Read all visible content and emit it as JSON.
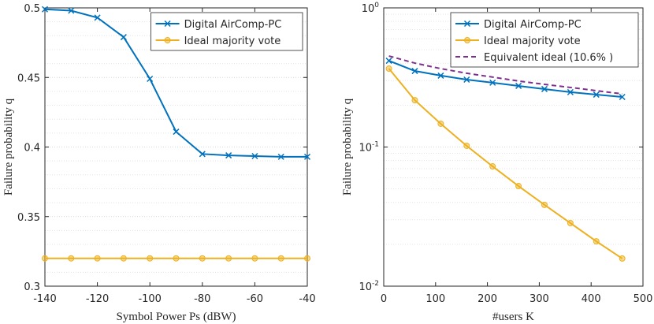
{
  "chart_data": [
    {
      "type": "line",
      "xlabel": "Symbol Power Ps (dBW)",
      "ylabel": "Failure probability q",
      "x": [
        -140,
        -130,
        -120,
        -110,
        -100,
        -90,
        -80,
        -70,
        -60,
        -50,
        -40
      ],
      "xlim": [
        -140,
        -40
      ],
      "xticks": [
        -140,
        -120,
        -100,
        -80,
        -60,
        -40
      ],
      "ylim": [
        0.3,
        0.5
      ],
      "yticks": [
        0.3,
        0.35,
        0.4,
        0.45,
        0.5
      ],
      "log_y": false,
      "grid": true,
      "minor_grid": true,
      "legend": "upper right",
      "series": [
        {
          "name": "Digital AirComp-PC",
          "color": "#0072bd",
          "marker": "x",
          "dash": false,
          "values": [
            0.499,
            0.498,
            0.493,
            0.479,
            0.449,
            0.411,
            0.395,
            0.394,
            0.3935,
            0.393,
            0.393
          ]
        },
        {
          "name": "Ideal majority vote",
          "color": "#edb120",
          "marker": "o",
          "dash": false,
          "values": [
            0.32,
            0.32,
            0.32,
            0.32,
            0.32,
            0.32,
            0.32,
            0.32,
            0.32,
            0.32,
            0.32
          ]
        }
      ]
    },
    {
      "type": "line",
      "xlabel": "#users K",
      "ylabel": "Failure probability q",
      "x": [
        10,
        60,
        110,
        160,
        210,
        260,
        310,
        360,
        410,
        460
      ],
      "xlim": [
        0,
        500
      ],
      "xticks": [
        0,
        100,
        200,
        300,
        400,
        500
      ],
      "ylim": [
        0.01,
        1
      ],
      "yticks": [
        {
          "value": 0.01,
          "label": "10^-2"
        },
        {
          "value": 0.1,
          "label": "10^-1"
        },
        {
          "value": 1,
          "label": "10^0"
        }
      ],
      "log_y": true,
      "grid": true,
      "minor_grid": true,
      "legend": "upper right",
      "series": [
        {
          "name": "Digital AirComp-PC",
          "color": "#0072bd",
          "marker": "x",
          "dash": false,
          "values": [
            0.417,
            0.352,
            0.326,
            0.305,
            0.29,
            0.275,
            0.261,
            0.248,
            0.238,
            0.229
          ]
        },
        {
          "name": "Ideal majority vote",
          "color": "#edb120",
          "marker": "o",
          "dash": false,
          "values": [
            0.366,
            0.217,
            0.147,
            0.102,
            0.0726,
            0.0524,
            0.0384,
            0.0284,
            0.021,
            0.0158
          ]
        },
        {
          "name": "Equivalent ideal (10.6% )",
          "color": "#7e2f8e",
          "marker": "none",
          "dash": true,
          "values": [
            0.451,
            0.401,
            0.366,
            0.339,
            0.318,
            0.298,
            0.282,
            0.268,
            0.254,
            0.241
          ]
        }
      ]
    }
  ]
}
